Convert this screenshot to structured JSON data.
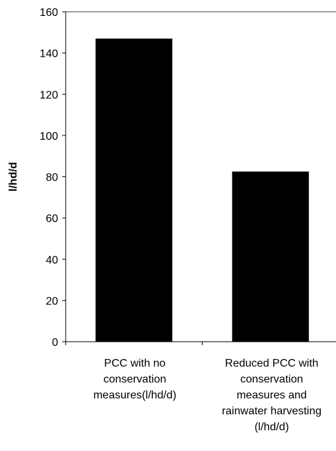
{
  "chart_data": {
    "type": "bar",
    "title": "",
    "xlabel": "",
    "ylabel": "l/hd/d",
    "ylim": [
      0,
      160
    ],
    "yticks": [
      0,
      20,
      40,
      60,
      80,
      100,
      120,
      140,
      160
    ],
    "grid": false,
    "legend": "none",
    "categories": [
      [
        "PCC with no",
        "conservation",
        "measures(l/hd/d)"
      ],
      [
        "Reduced PCC with",
        "conservation",
        "measures and",
        "rainwater harvesting",
        "(l/hd/d)"
      ]
    ],
    "values": [
      147,
      82.5
    ],
    "colors": {
      "bar": "#000000",
      "axis": "#000000",
      "frame": "#808080"
    }
  }
}
